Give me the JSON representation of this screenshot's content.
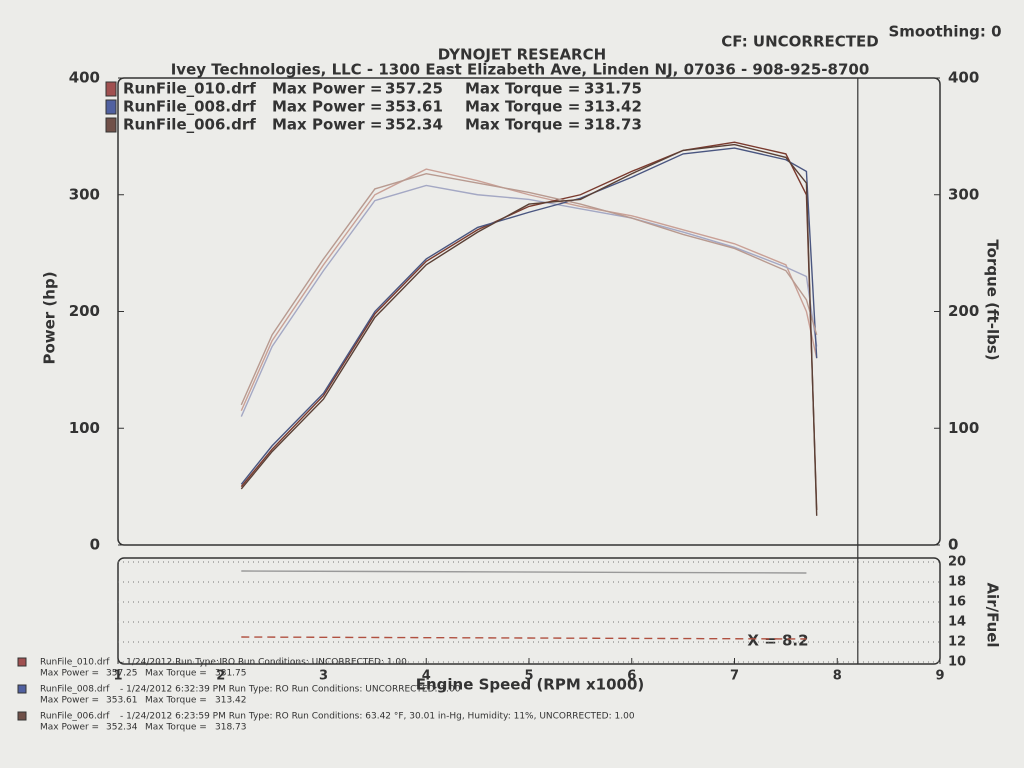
{
  "header": {
    "title": "DYNOJET RESEARCH",
    "cf": "CF: UNCORRECTED",
    "smoothing": "Smoothing: 0",
    "company": "Ivey Technologies, LLC - 1300 East Elizabeth Ave, Linden NJ, 07036 - 908-925-8700"
  },
  "chart_data": [
    {
      "type": "line",
      "x_label": "Engine Speed (RPM x1000)",
      "y_label": "Power (hp)",
      "y2_label": "Torque (ft-lbs)",
      "power_label": "Max Power =",
      "torque_label": "Max Torque =",
      "xlim": [
        1,
        9
      ],
      "ylim": [
        0,
        400
      ],
      "yticks": [
        0,
        100,
        200,
        300,
        400
      ],
      "y2lim": [
        0,
        400
      ],
      "y2ticks": [
        0,
        100,
        200,
        300,
        400
      ],
      "x": [
        2.2,
        2.5,
        3,
        3.5,
        4,
        4.5,
        5,
        5.5,
        6,
        6.5,
        7,
        7.5,
        7.7,
        7.8
      ],
      "series": [
        {
          "name": "RunFile_010.drf",
          "color": "#a05050",
          "power_color": "#7a3a2e",
          "torque_color": "#c9a096",
          "max_power": 357.25,
          "max_torque": 331.75,
          "info": "- 1/24/2012 Run Type: RO Run Conditions: UNCORRECTED: 1.00",
          "power": [
            50,
            82,
            128,
            198,
            243,
            270,
            290,
            300,
            320,
            338,
            345,
            335,
            300,
            30
          ],
          "torque": [
            115,
            175,
            240,
            300,
            322,
            312,
            300,
            290,
            282,
            270,
            258,
            240,
            200,
            160
          ]
        },
        {
          "name": "RunFile_008.drf",
          "color": "#5060a0",
          "power_color": "#4a5680",
          "torque_color": "#a4a8c4",
          "max_power": 353.61,
          "max_torque": 313.42,
          "info": "- 1/24/2012 6:32:39 PM  Run Type: RO  Run Conditions: UNCORRECTED: 1.00",
          "power": [
            52,
            85,
            130,
            200,
            245,
            272,
            285,
            297,
            315,
            335,
            340,
            330,
            320,
            160
          ],
          "torque": [
            110,
            170,
            235,
            295,
            308,
            300,
            296,
            288,
            280,
            268,
            255,
            238,
            230,
            170
          ]
        },
        {
          "name": "RunFile_006.drf",
          "color": "#705048",
          "power_color": "#5a4036",
          "torque_color": "#b89a90",
          "max_power": 352.34,
          "max_torque": 318.73,
          "info": "- 1/24/2012 6:23:59 PM  Run Type: RO  Run Conditions: 63.42 °F, 30.01 in-Hg, Humidity: 11%, UNCORRECTED: 1.00",
          "power": [
            48,
            80,
            125,
            195,
            240,
            268,
            292,
            296,
            318,
            338,
            343,
            332,
            310,
            25
          ],
          "torque": [
            120,
            180,
            245,
            305,
            318,
            310,
            302,
            292,
            280,
            266,
            254,
            235,
            210,
            180
          ]
        }
      ],
      "cursor": {
        "value": 8.2,
        "label": "X = 8.2"
      }
    },
    {
      "type": "line",
      "y_label": "Air/Fuel",
      "xlim": [
        1,
        9
      ],
      "xticks": [
        1,
        2,
        3,
        4,
        5,
        6,
        7,
        8,
        9
      ],
      "ylim": [
        10,
        20
      ],
      "yticks": [
        10,
        12,
        14,
        16,
        18,
        20
      ],
      "grid": true,
      "x": [
        2.2,
        7.7
      ],
      "series": [
        {
          "color": "#b05040",
          "dashed": true,
          "values": [
            12.5,
            12.3
          ]
        },
        {
          "color": "#999999",
          "dashed": false,
          "values": [
            19.1,
            18.9
          ]
        }
      ]
    }
  ]
}
